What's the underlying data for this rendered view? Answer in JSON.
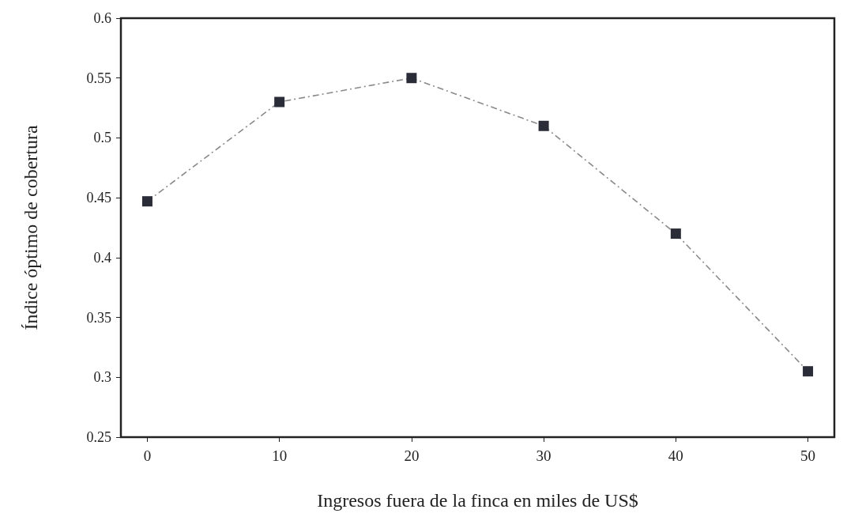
{
  "chart_data": {
    "type": "line",
    "xlabel": "Ingresos fuera de la finca en miles de US$",
    "ylabel": "Índice óptimo de cobertura",
    "x": [
      0,
      10,
      20,
      30,
      40,
      50
    ],
    "series": [
      {
        "color": "#2a2d38",
        "values": [
          0.447,
          0.53,
          0.55,
          0.51,
          0.42,
          0.305
        ]
      }
    ],
    "xlim": [
      -2,
      52
    ],
    "xticks": [
      0,
      10,
      20,
      30,
      40,
      50
    ],
    "ylim": [
      0.25,
      0.6
    ],
    "yticks": [
      0.25,
      0.3,
      0.35,
      0.4,
      0.45,
      0.5,
      0.55,
      0.6
    ],
    "grid": false,
    "marker": "square",
    "line_style": "dashed"
  }
}
